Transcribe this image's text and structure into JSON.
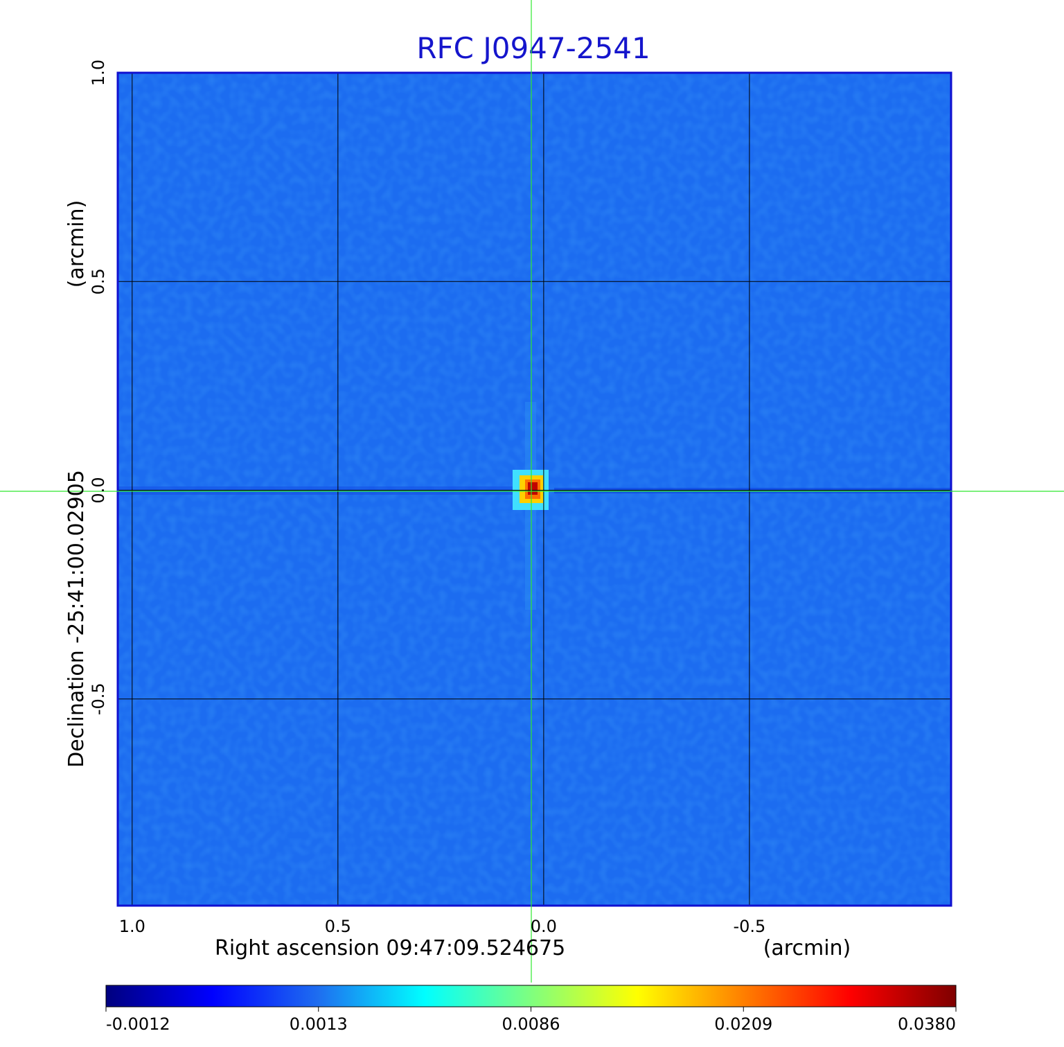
{
  "chart_data": {
    "type": "image",
    "title": "RFC J0947-2541",
    "xlabel": "Right ascension  09:47:09.524675",
    "xunit": "(arcmin)",
    "ylabel": "Declination  -25:41:00.02905",
    "yunit": "(arcmin)",
    "xlim": [
      1.035,
      -0.99
    ],
    "ylim": [
      -0.995,
      1.0
    ],
    "xticks": [
      {
        "value": 1.0,
        "label": "1.0"
      },
      0.5,
      {
        "value": 0.0,
        "label": "0.0"
      },
      -0.5
    ],
    "yticks": [
      -0.5,
      {
        "value": 0.0,
        "label": "0.0"
      },
      0.5,
      {
        "value": 1.0,
        "label": "1.0"
      }
    ],
    "grid": true,
    "colormap": [
      "#00007f",
      "#0000ff",
      "#1e6ef0",
      "#00ffff",
      "#7fff7f",
      "#ffff00",
      "#ff7f00",
      "#ff0000",
      "#7f0000"
    ],
    "colorbar_ticks": [
      -0.0012,
      0.0013,
      0.0086,
      0.0209,
      {
        "value": 0.038,
        "label": "0.0380"
      }
    ]
  }
}
